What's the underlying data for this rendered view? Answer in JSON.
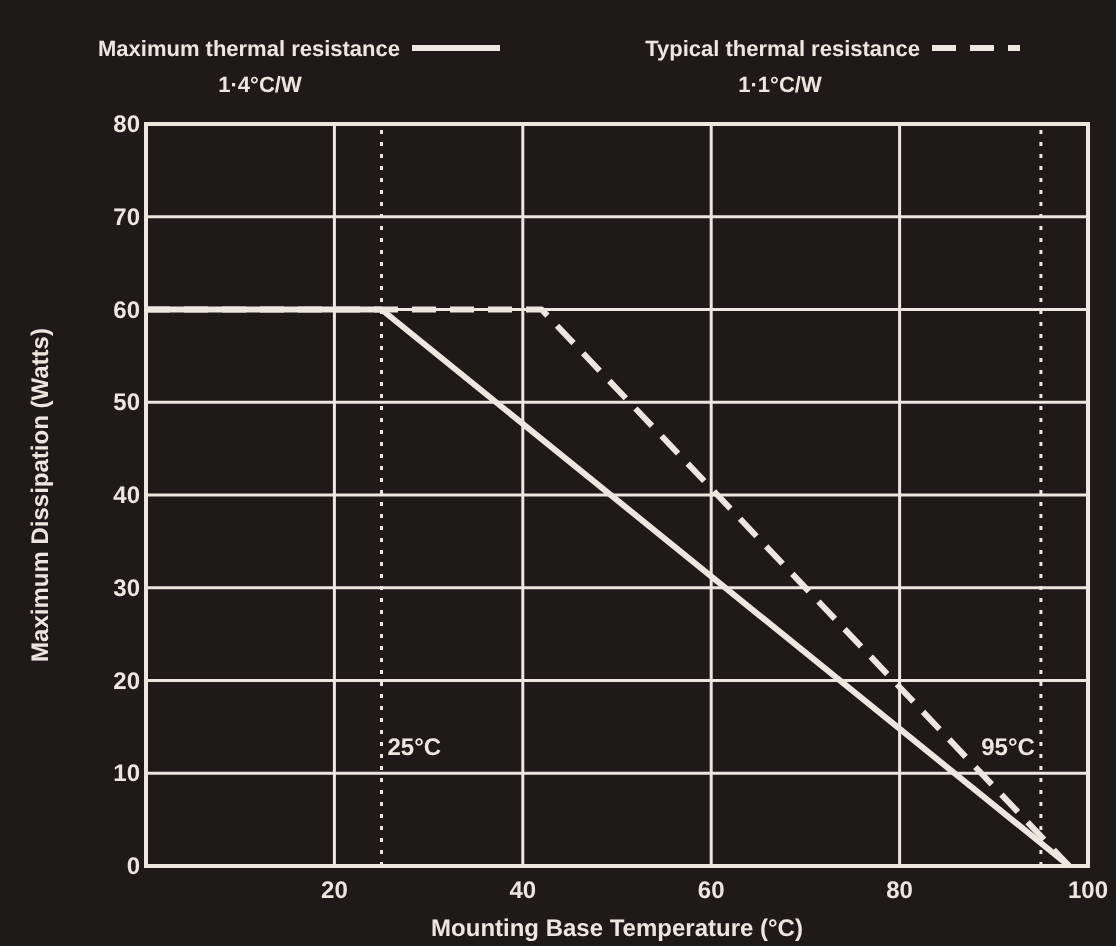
{
  "chart_data": {
    "type": "line",
    "xlabel": "Mounting Base Temperature (°C)",
    "ylabel": "Maximum Dissipation (Watts)",
    "xlim": [
      0,
      100
    ],
    "ylim": [
      0,
      80
    ],
    "xticks": [
      20,
      40,
      60,
      80,
      100
    ],
    "yticks": [
      0,
      10,
      20,
      30,
      40,
      50,
      60,
      70,
      80
    ],
    "grid": true,
    "legend": "top",
    "marker": "none",
    "series": [
      {
        "name": "Maximum thermal resistance",
        "color": "#ebe7de",
        "line_style": "solid",
        "x": [
          0,
          25,
          98
        ],
        "values": [
          60,
          60,
          0
        ]
      },
      {
        "name": "Typical thermal resistance",
        "color": "#ebe7de",
        "line_style": "dashed",
        "x": [
          0,
          42,
          98
        ],
        "values": [
          60,
          60,
          0
        ]
      }
    ],
    "annotations": [
      "1·4°C/W",
      "1·1°C/W"
    ],
    "ref_lines": [
      {
        "axis": "x",
        "value": 25,
        "label": "25°C",
        "line_style": "dotted",
        "color": "#ebe7de"
      },
      {
        "axis": "x",
        "value": 95,
        "label": "95°C",
        "line_style": "dotted",
        "color": "#ebe7de"
      }
    ]
  }
}
